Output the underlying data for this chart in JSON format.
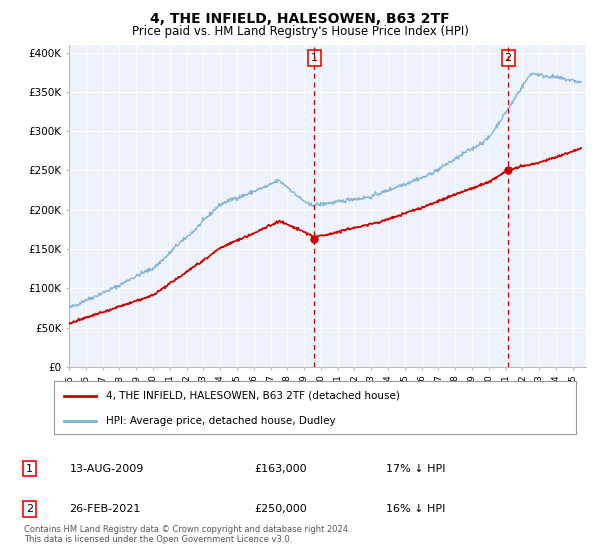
{
  "title": "4, THE INFIELD, HALESOWEN, B63 2TF",
  "subtitle": "Price paid vs. HM Land Registry's House Price Index (HPI)",
  "ytick_values": [
    0,
    50000,
    100000,
    150000,
    200000,
    250000,
    300000,
    350000,
    400000
  ],
  "ylim": [
    0,
    410000
  ],
  "xlim_start": 1995.0,
  "xlim_end": 2025.8,
  "legend_label_red": "4, THE INFIELD, HALESOWEN, B63 2TF (detached house)",
  "legend_label_blue": "HPI: Average price, detached house, Dudley",
  "annotation1_date": "13-AUG-2009",
  "annotation1_price": "£163,000",
  "annotation1_hpi": "17% ↓ HPI",
  "annotation2_date": "26-FEB-2021",
  "annotation2_price": "£250,000",
  "annotation2_hpi": "16% ↓ HPI",
  "vline1_x": 2009.617,
  "vline2_x": 2021.154,
  "sale1_y": 163000,
  "sale2_y": 250000,
  "footer": "Contains HM Land Registry data © Crown copyright and database right 2024.\nThis data is licensed under the Open Government Licence v3.0.",
  "plot_bg": "#eef2fb",
  "red_color": "#cc0000",
  "blue_color": "#7bafd4"
}
